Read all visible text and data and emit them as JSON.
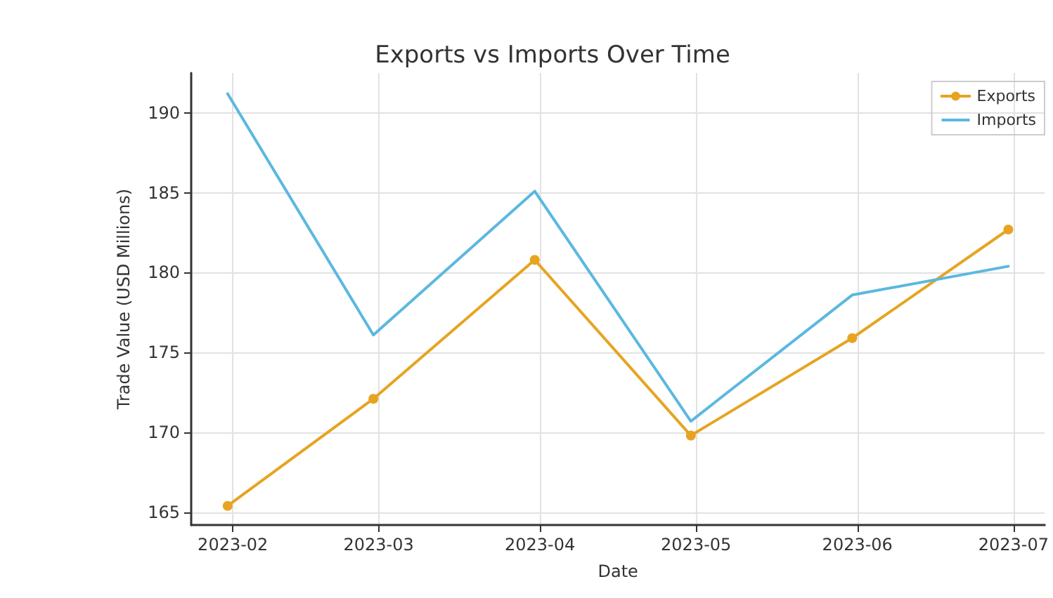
{
  "chart_data": {
    "type": "line",
    "title": "Exports vs Imports Over Time",
    "xlabel": "Date",
    "ylabel": "Trade Value (USD Millions)",
    "x": [
      "2023-01-31",
      "2023-02-28",
      "2023-03-31",
      "2023-04-30",
      "2023-05-31",
      "2023-06-30"
    ],
    "series": [
      {
        "name": "Exports",
        "color": "#e6a421",
        "marker": "circle",
        "values": [
          165.4,
          172.1,
          180.8,
          169.8,
          175.9,
          182.7
        ]
      },
      {
        "name": "Imports",
        "color": "#5bb8e0",
        "marker": "none",
        "values": [
          191.2,
          176.1,
          185.1,
          170.7,
          178.6,
          180.4
        ]
      }
    ],
    "xlim": [
      "2023-01-24",
      "2023-07-07"
    ],
    "xticks": [
      {
        "value": "2023-02-01",
        "label": "2023-02"
      },
      {
        "value": "2023-03-01",
        "label": "2023-03"
      },
      {
        "value": "2023-04-01",
        "label": "2023-04"
      },
      {
        "value": "2023-05-01",
        "label": "2023-05"
      },
      {
        "value": "2023-06-01",
        "label": "2023-06"
      },
      {
        "value": "2023-07-01",
        "label": "2023-07"
      }
    ],
    "ylim": [
      164.2,
      192.5
    ],
    "yticks": [
      165,
      170,
      175,
      180,
      185,
      190
    ],
    "grid": true,
    "legend": "top right",
    "line_style": "solid"
  }
}
